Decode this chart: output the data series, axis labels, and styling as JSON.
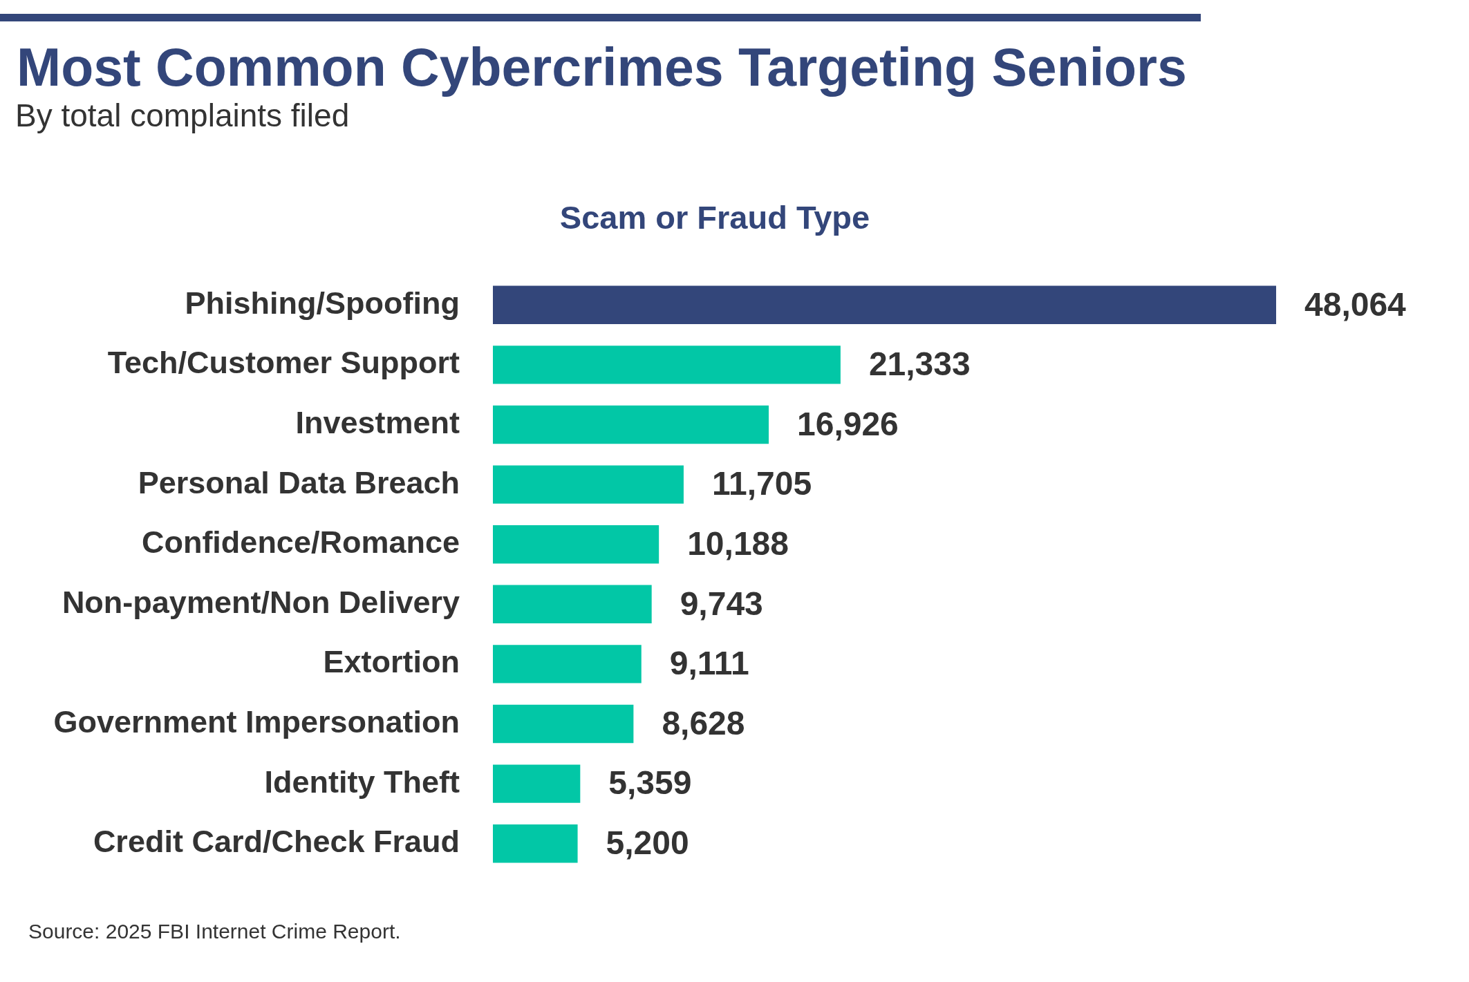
{
  "chart_data": {
    "type": "bar",
    "orientation": "horizontal",
    "title": "Most Common Cybercrimes Targeting Seniors",
    "subtitle": "By total complaints filed",
    "ylabel": "Scam or Fraud Type",
    "categories": [
      "Phishing/Spoofing",
      "Tech/Customer Support",
      "Investment",
      "Personal Data Breach",
      "Confidence/Romance",
      "Non-payment/Non Delivery",
      "Extortion",
      "Government Impersonation",
      "Identity Theft",
      "Credit Card/Check Fraud"
    ],
    "values": [
      48064,
      21333,
      16926,
      11705,
      10188,
      9743,
      9111,
      8628,
      5359,
      5200
    ],
    "value_labels": [
      "48,064",
      "21,333",
      "16,926",
      "11,705",
      "10,188",
      "9,743",
      "9,111",
      "8,628",
      "5,359",
      "5,200"
    ],
    "colors": [
      "#33467a",
      "#02c7a6",
      "#02c7a6",
      "#02c7a6",
      "#02c7a6",
      "#02c7a6",
      "#02c7a6",
      "#02c7a6",
      "#02c7a6",
      "#02c7a6"
    ],
    "tick_labels": "y",
    "annotations": [
      "Source: 2025 FBI Internet Crime Report."
    ]
  }
}
